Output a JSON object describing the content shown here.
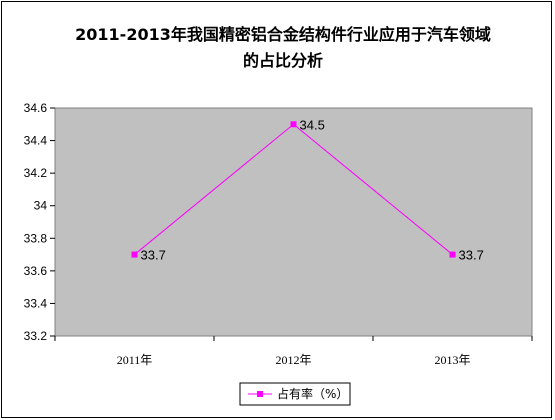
{
  "chart_data": {
    "type": "line",
    "title_lines": [
      "2011-2013年我国精密铝合金结构件行业应用于汽车领域",
      "的占比分析"
    ],
    "categories": [
      "2011年",
      "2012年",
      "2013年"
    ],
    "series": [
      {
        "name": "占有率（%）",
        "values": [
          33.7,
          34.5,
          33.7
        ],
        "color": "#ff00ff"
      }
    ],
    "data_labels": [
      "33.7",
      "34.5",
      "33.7"
    ],
    "y_ticks": [
      "33.2",
      "33.4",
      "33.6",
      "33.8",
      "34",
      "34.2",
      "34.4",
      "34.6"
    ],
    "ylim": [
      33.2,
      34.6
    ],
    "grid": false,
    "legend_position": "bottom",
    "plot_background": "#c0c0c0"
  }
}
